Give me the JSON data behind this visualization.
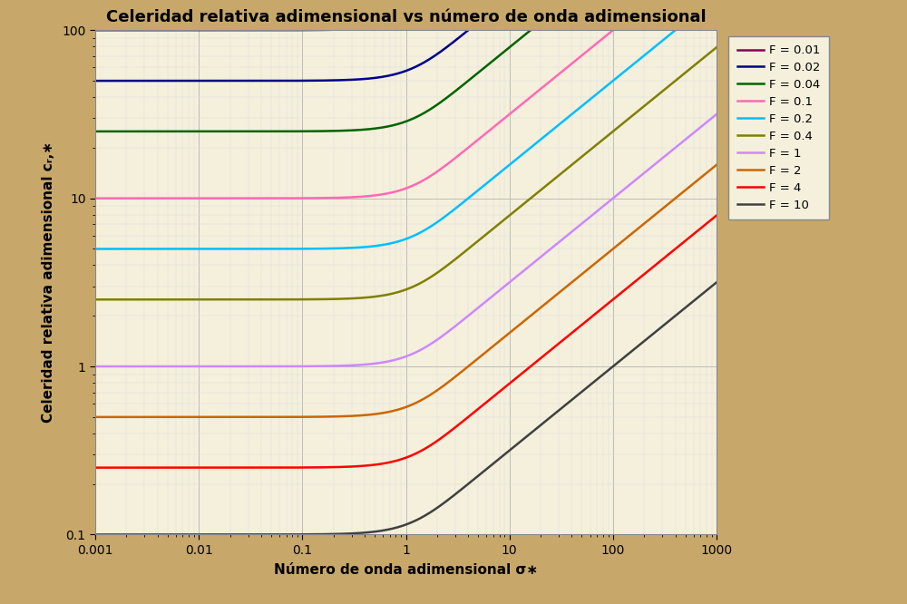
{
  "title": "Celeridad relativa adimensional vs número de onda adimensional",
  "xlabel": "Número de onda adimensional σ∗",
  "ylabel": "Celeridad relativa adimensional cᵣ,∗",
  "F_values": [
    0.01,
    0.02,
    0.04,
    0.1,
    0.2,
    0.4,
    1,
    2,
    4,
    10
  ],
  "colors": [
    "#8B0050",
    "#00008B",
    "#006400",
    "#FF69B4",
    "#00BFFF",
    "#808000",
    "#CC88FF",
    "#CC6600",
    "#FF0000",
    "#404040"
  ],
  "xlim": [
    0.001,
    1000
  ],
  "ylim": [
    0.1,
    100
  ],
  "background_outer": "#C8A86A",
  "background_inner": "#F5F0DC",
  "grid_major_color": "#BBBBBB",
  "grid_minor_color": "#DDDDDD",
  "legend_labels": [
    "F = 0.01",
    "F = 0.02",
    "F = 0.04",
    "F = 0.1",
    "F = 0.2",
    "F = 0.4",
    "F = 1",
    "F = 2",
    "F = 4",
    "F = 10"
  ],
  "linewidth": 1.8,
  "title_fontsize": 13,
  "label_fontsize": 11,
  "tick_fontsize": 10
}
